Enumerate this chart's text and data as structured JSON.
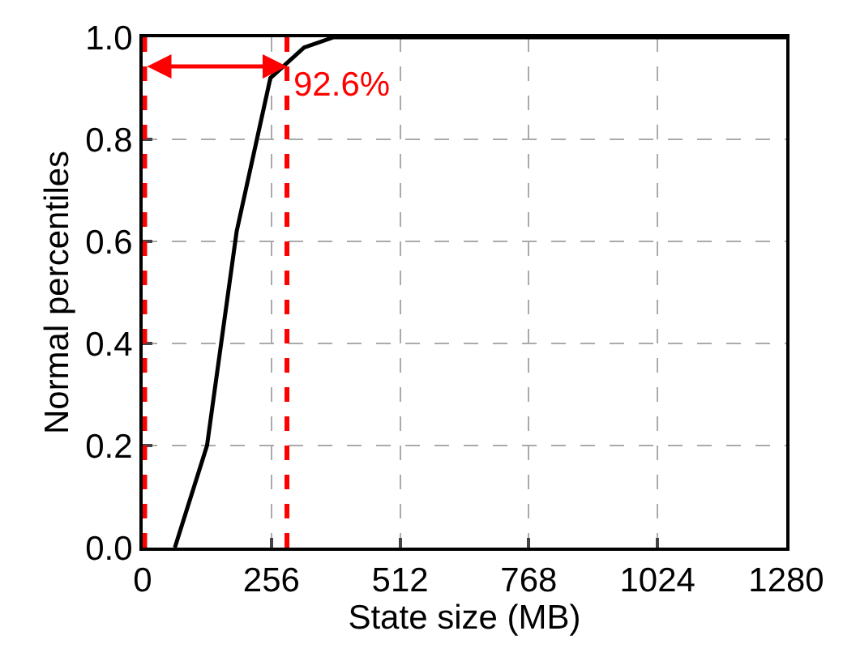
{
  "chart_data": {
    "type": "line",
    "xlabel": "State size (MB)",
    "ylabel": "Normal percentiles",
    "x": [
      64,
      128,
      187,
      254,
      321,
      380,
      1280
    ],
    "series": [
      {
        "color": "#000000",
        "values": [
          0,
          0.2,
          0.62,
          0.92,
          0.98,
          1.0,
          1.0
        ]
      }
    ],
    "xlim": [
      0,
      1280
    ],
    "xticks": [
      0,
      256,
      512,
      768,
      1024,
      1280
    ],
    "ylim": [
      0,
      1.0
    ],
    "yticks": [
      {
        "value": 0,
        "label": "0.0"
      },
      0.2,
      0.4,
      0.6,
      0.8,
      {
        "value": 1.0,
        "label": "1.0"
      }
    ],
    "grid": true,
    "marker": "none",
    "line_style": "solid",
    "ref_lines": [
      {
        "axis": "x",
        "value": 4,
        "color": "#ff0000",
        "line_style": "dashed"
      },
      {
        "axis": "x",
        "value": 287,
        "color": "#ff0000",
        "line_style": "dashed"
      }
    ],
    "annotations": [
      {
        "text": "92.6%",
        "x": 287,
        "y": 0.943
      }
    ]
  }
}
